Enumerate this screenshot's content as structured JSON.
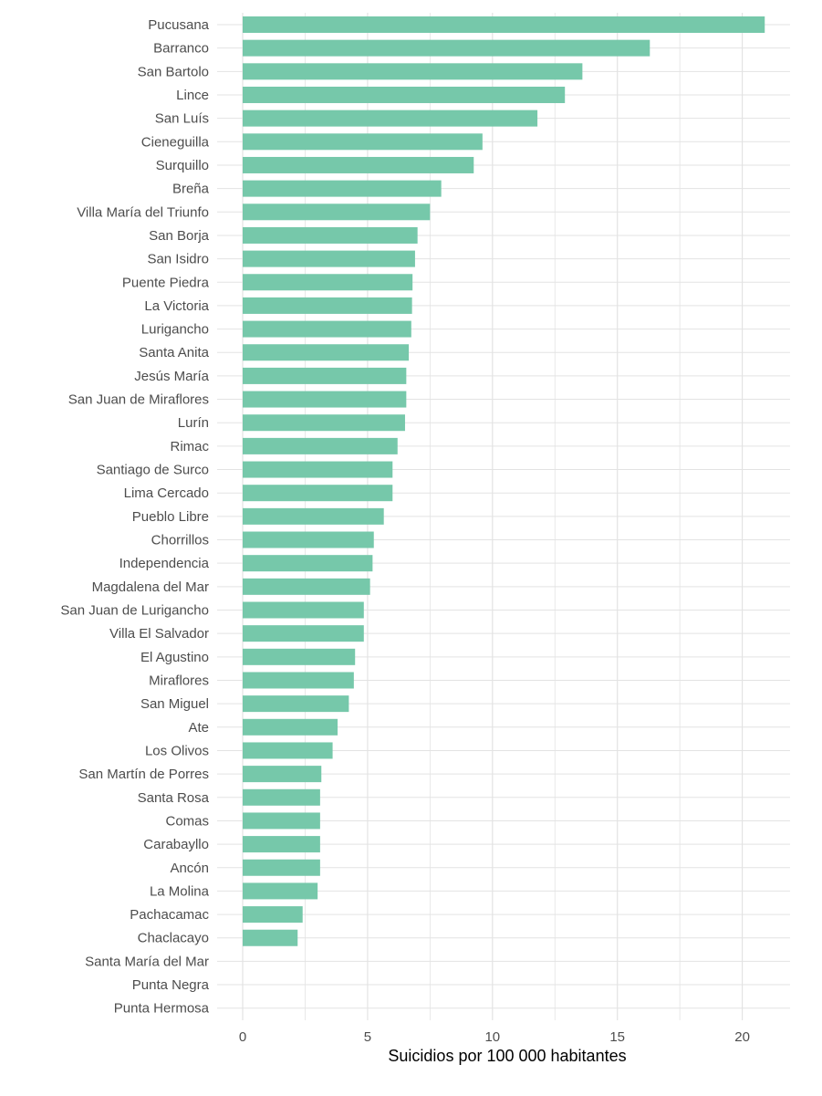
{
  "chart_data": {
    "type": "bar",
    "orientation": "horizontal",
    "xlabel": "Suicidios por 100 000 habitantes",
    "ylabel": "",
    "xlim": [
      0,
      21.9
    ],
    "xticks": [
      0,
      5,
      10,
      15,
      20
    ],
    "grid": true,
    "bar_color": "#76c8aa",
    "grid_color": "#e3e3e3",
    "categories": [
      "Pucusana",
      "Barranco",
      "San Bartolo",
      "Lince",
      "San Luís",
      "Cieneguilla",
      "Surquillo",
      "Breña",
      "Villa María del Triunfo",
      "San Borja",
      "San Isidro",
      "Puente Piedra",
      "La Victoria",
      "Lurigancho",
      "Santa Anita",
      "Jesús María",
      "San Juan de Miraflores",
      "Lurín",
      "Rimac",
      "Santiago de Surco",
      "Lima Cercado",
      "Pueblo Libre",
      "Chorrillos",
      "Independencia",
      "Magdalena del Mar",
      "San Juan de Lurigancho",
      "Villa El Salvador",
      "El Agustino",
      "Miraflores",
      "San Miguel",
      "Ate",
      "Los Olivos",
      "San Martín de Porres",
      "Santa Rosa",
      "Comas",
      "Carabayllo",
      "Ancón",
      "La Molina",
      "Pachacamac",
      "Chaclacayo",
      "Santa María del Mar",
      "Punta Negra",
      "Punta Hermosa"
    ],
    "values": [
      20.9,
      16.3,
      13.6,
      12.9,
      11.8,
      9.6,
      9.25,
      7.95,
      7.5,
      7.0,
      6.9,
      6.8,
      6.78,
      6.75,
      6.65,
      6.55,
      6.55,
      6.5,
      6.2,
      6.0,
      6.0,
      5.65,
      5.25,
      5.2,
      5.1,
      4.85,
      4.85,
      4.5,
      4.45,
      4.25,
      3.8,
      3.6,
      3.15,
      3.1,
      3.1,
      3.1,
      3.1,
      3.0,
      2.4,
      2.2,
      0,
      0,
      0
    ]
  }
}
